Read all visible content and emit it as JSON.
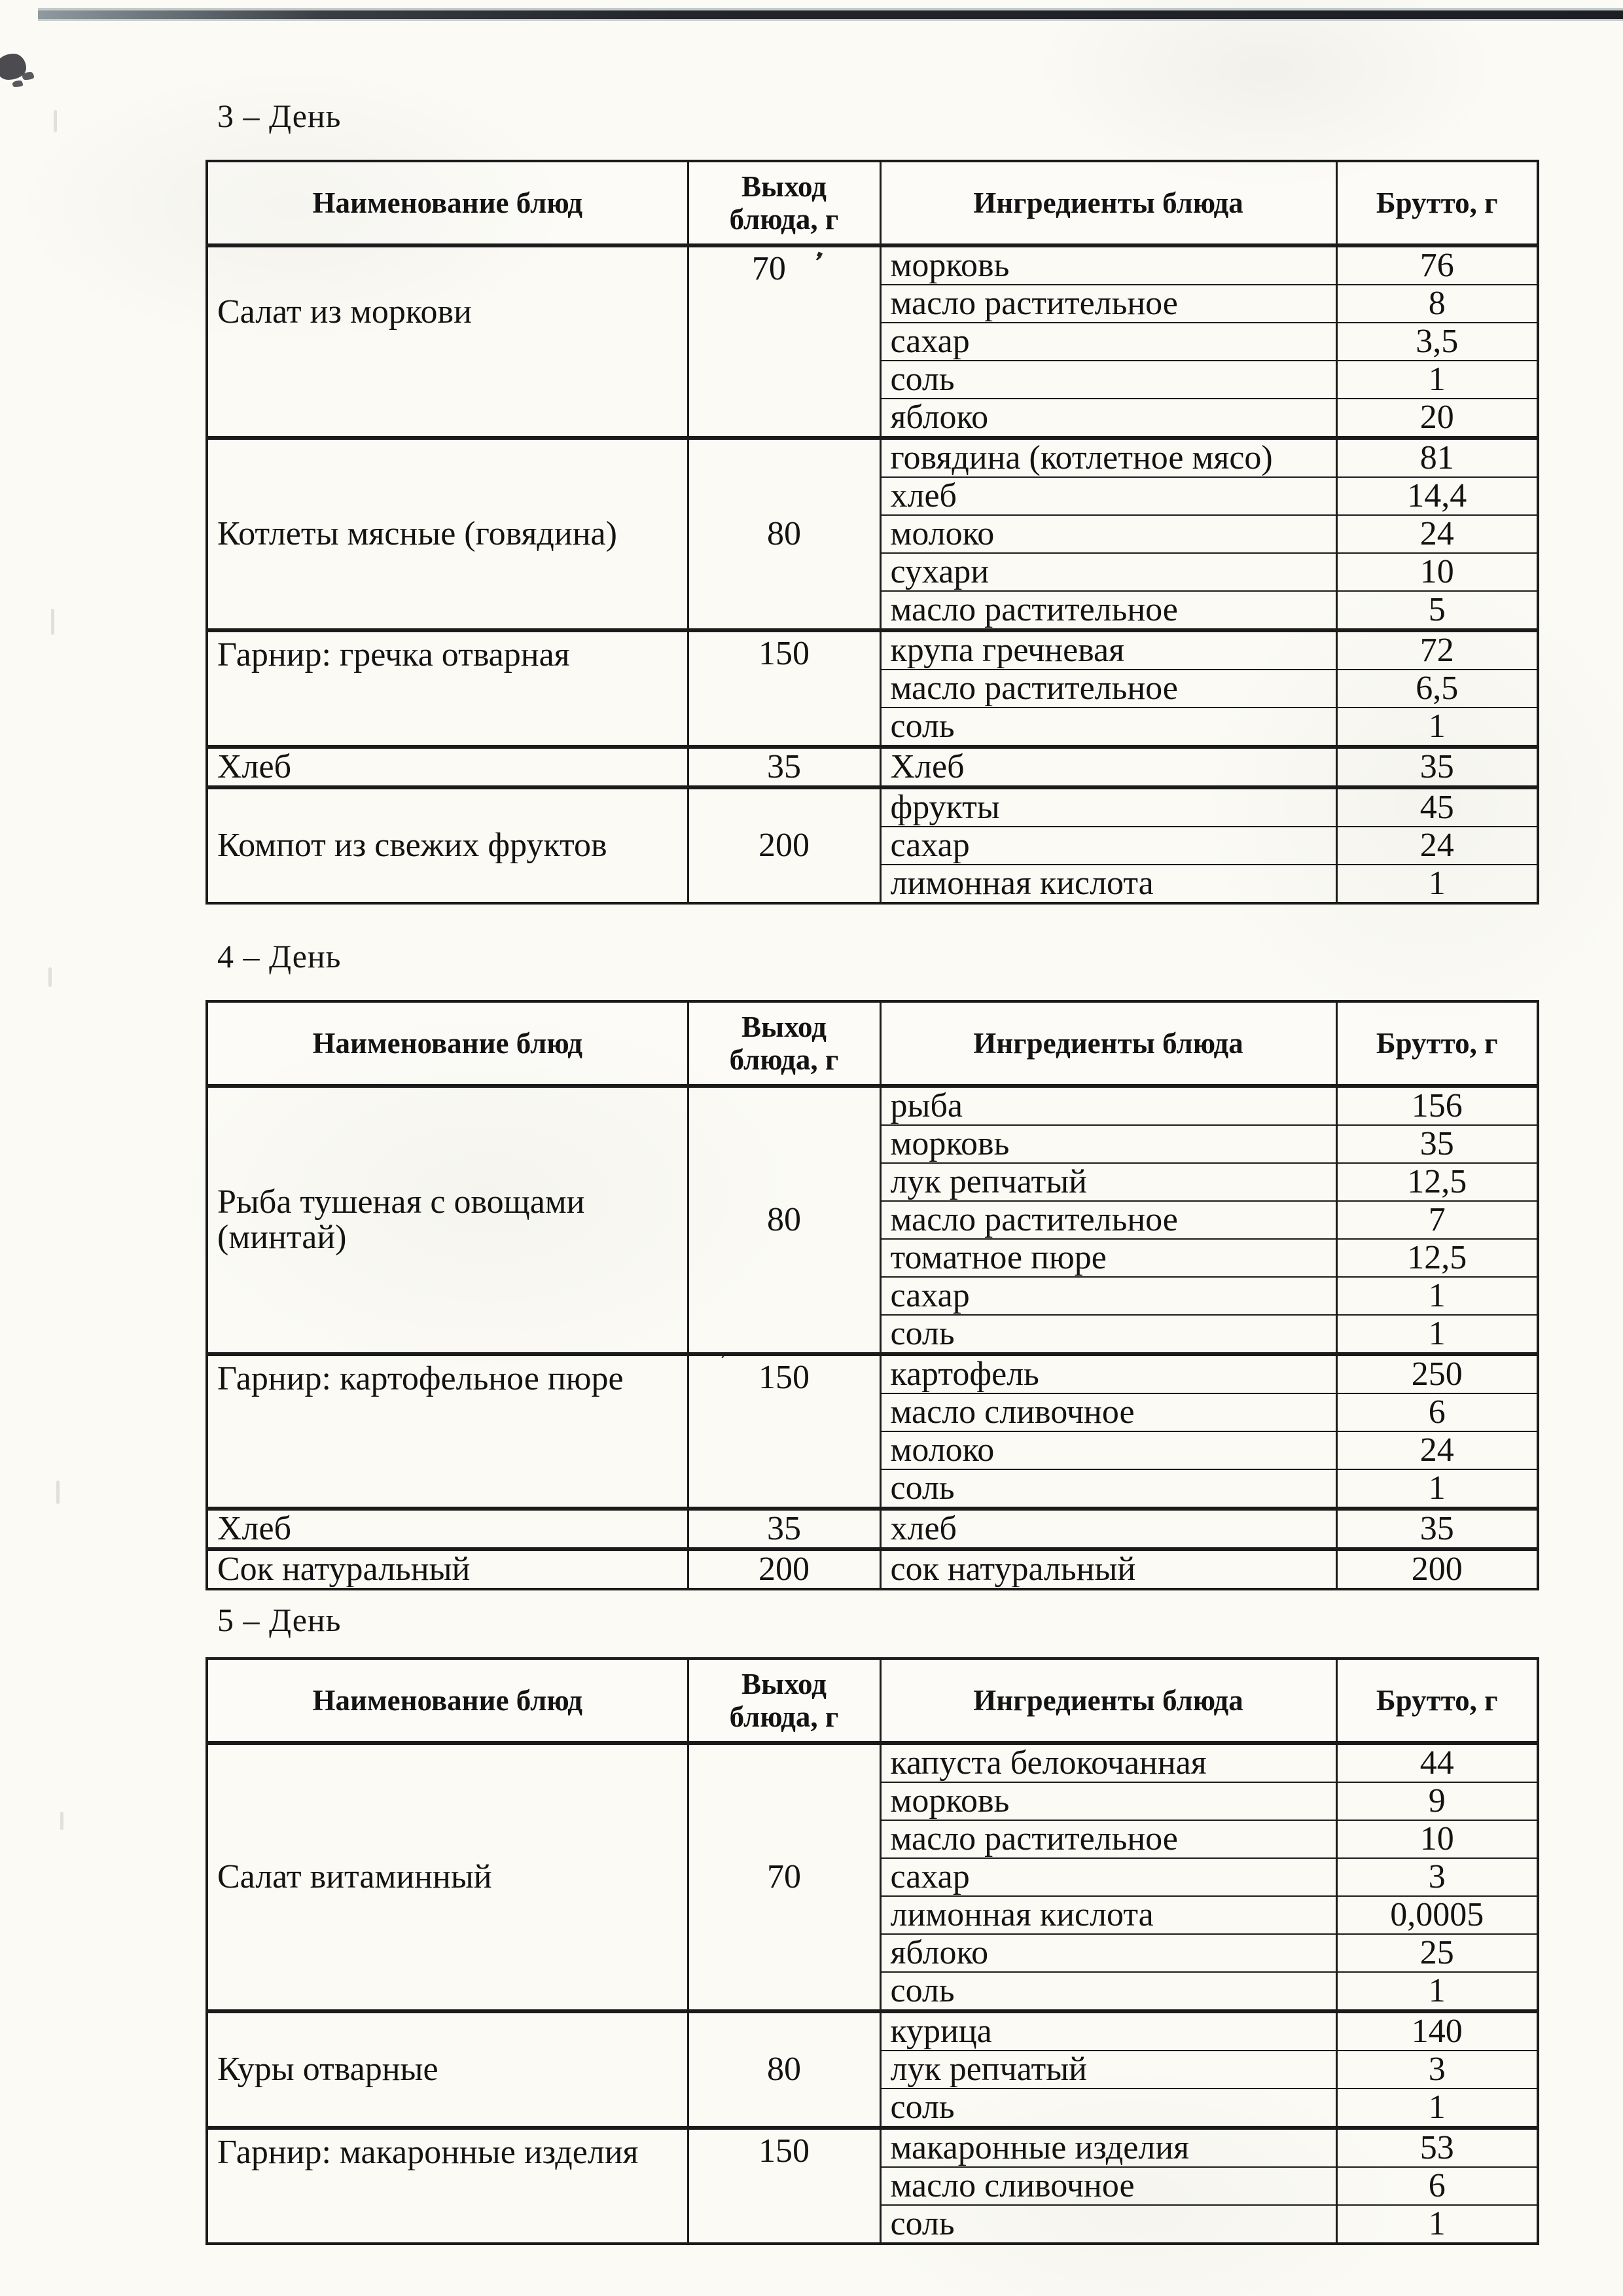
{
  "artifacts": {
    "pen_glyph": "❜"
  },
  "days": [
    {
      "title": "3 – День",
      "headers": [
        "Наименование блюд",
        "Выход\nблюда, г",
        "Ингредиенты блюда",
        "Брутто, г"
      ],
      "blocks": [
        {
          "dish": "Салат из моркови",
          "output": "70",
          "dish_align": "high",
          "output_align": "top",
          "output_mark": "after",
          "ingredients": [
            {
              "name": "морковь",
              "gross": "76"
            },
            {
              "name": "масло растительное",
              "gross": "8"
            },
            {
              "name": "сахар",
              "gross": "3,5"
            },
            {
              "name": "соль",
              "gross": "1"
            },
            {
              "name": "яблоко",
              "gross": "20"
            }
          ]
        },
        {
          "dish": "Котлеты мясные (говядина)",
          "output": "80",
          "dish_align": "middle",
          "output_align": "middle",
          "ingredients": [
            {
              "name": "говядина (котлетное мясо)",
              "gross": "81"
            },
            {
              "name": "хлеб",
              "gross": "14,4"
            },
            {
              "name": "молоко",
              "gross": "24"
            },
            {
              "name": "сухари",
              "gross": "10"
            },
            {
              "name": "масло растительное",
              "gross": "5"
            }
          ]
        },
        {
          "dish": "Гарнир: гречка отварная",
          "output": "150",
          "dish_align": "top",
          "output_align": "top",
          "ingredients": [
            {
              "name": "крупа гречневая",
              "gross": "72"
            },
            {
              "name": "масло растительное",
              "gross": "6,5"
            },
            {
              "name": "соль",
              "gross": "1"
            }
          ]
        },
        {
          "dish": "Хлеб",
          "output": "35",
          "dish_align": "middle",
          "output_align": "middle",
          "ingredients": [
            {
              "name": "Хлеб",
              "gross": "35"
            }
          ]
        },
        {
          "dish": "Компот из свежих фруктов",
          "output": "200",
          "dish_align": "middle",
          "output_align": "middle",
          "ingredients": [
            {
              "name": "фрукты",
              "gross": "45"
            },
            {
              "name": "сахар",
              "gross": "24"
            },
            {
              "name": "лимонная кислота",
              "gross": "1"
            }
          ]
        }
      ]
    },
    {
      "title": "4 – День",
      "headers": [
        "Наименование блюд",
        "Выход\nблюда, г",
        "Ингредиенты блюда",
        "Брутто, г"
      ],
      "blocks": [
        {
          "dish": "Рыба тушеная с овощами (минтай)",
          "output": "80",
          "dish_align": "middle",
          "output_align": "middle",
          "ingredients": [
            {
              "name": "рыба",
              "gross": "156"
            },
            {
              "name": "морковь",
              "gross": "35"
            },
            {
              "name": "лук репчатый",
              "gross": "12,5"
            },
            {
              "name": "масло растительное",
              "gross": "7"
            },
            {
              "name": "томатное пюре",
              "gross": "12,5"
            },
            {
              "name": "сахар",
              "gross": "1"
            },
            {
              "name": "соль",
              "gross": "1"
            }
          ]
        },
        {
          "dish": "Гарнир: картофельное пюре",
          "output": "150",
          "dish_align": "top",
          "output_align": "top",
          "output_mark": "above",
          "ingredients": [
            {
              "name": "картофель",
              "gross": "250"
            },
            {
              "name": "масло сливочное",
              "gross": "6"
            },
            {
              "name": "молоко",
              "gross": "24"
            },
            {
              "name": "соль",
              "gross": "1"
            }
          ]
        },
        {
          "dish": "Хлеб",
          "output": "35",
          "dish_align": "middle",
          "output_align": "middle",
          "ingredients": [
            {
              "name": "хлеб",
              "gross": "35"
            }
          ]
        },
        {
          "dish": "Сок натуральный",
          "output": "200",
          "dish_align": "middle",
          "output_align": "middle",
          "ingredients": [
            {
              "name": "сок натуральный",
              "gross": "200"
            }
          ]
        }
      ]
    },
    {
      "title": "5 – День",
      "headers": [
        "Наименование блюд",
        "Выход\nблюда, г",
        "Ингредиенты блюда",
        "Брутто, г"
      ],
      "blocks": [
        {
          "dish": "Салат витаминный",
          "output": "70",
          "dish_align": "middle",
          "output_align": "middle",
          "ingredients": [
            {
              "name": "капуста белокочанная",
              "gross": "44"
            },
            {
              "name": "морковь",
              "gross": "9"
            },
            {
              "name": "масло растительное",
              "gross": "10"
            },
            {
              "name": "сахар",
              "gross": "3"
            },
            {
              "name": "лимонная кислота",
              "gross": "0,0005"
            },
            {
              "name": "яблоко",
              "gross": "25"
            },
            {
              "name": "соль",
              "gross": "1"
            }
          ]
        },
        {
          "dish": "Куры отварные",
          "output": "80",
          "dish_align": "middle",
          "output_align": "middle",
          "ingredients": [
            {
              "name": "курица",
              "gross": "140"
            },
            {
              "name": "лук репчатый",
              "gross": "3"
            },
            {
              "name": "соль",
              "gross": "1"
            }
          ]
        },
        {
          "dish": "Гарнир: макаронные изделия",
          "output": "150",
          "dish_align": "top",
          "output_align": "top",
          "ingredients": [
            {
              "name": "макаронные  изделия",
              "gross": "53"
            },
            {
              "name": "масло сливочное",
              "gross": "6"
            },
            {
              "name": "соль",
              "gross": "1"
            }
          ]
        }
      ]
    }
  ]
}
